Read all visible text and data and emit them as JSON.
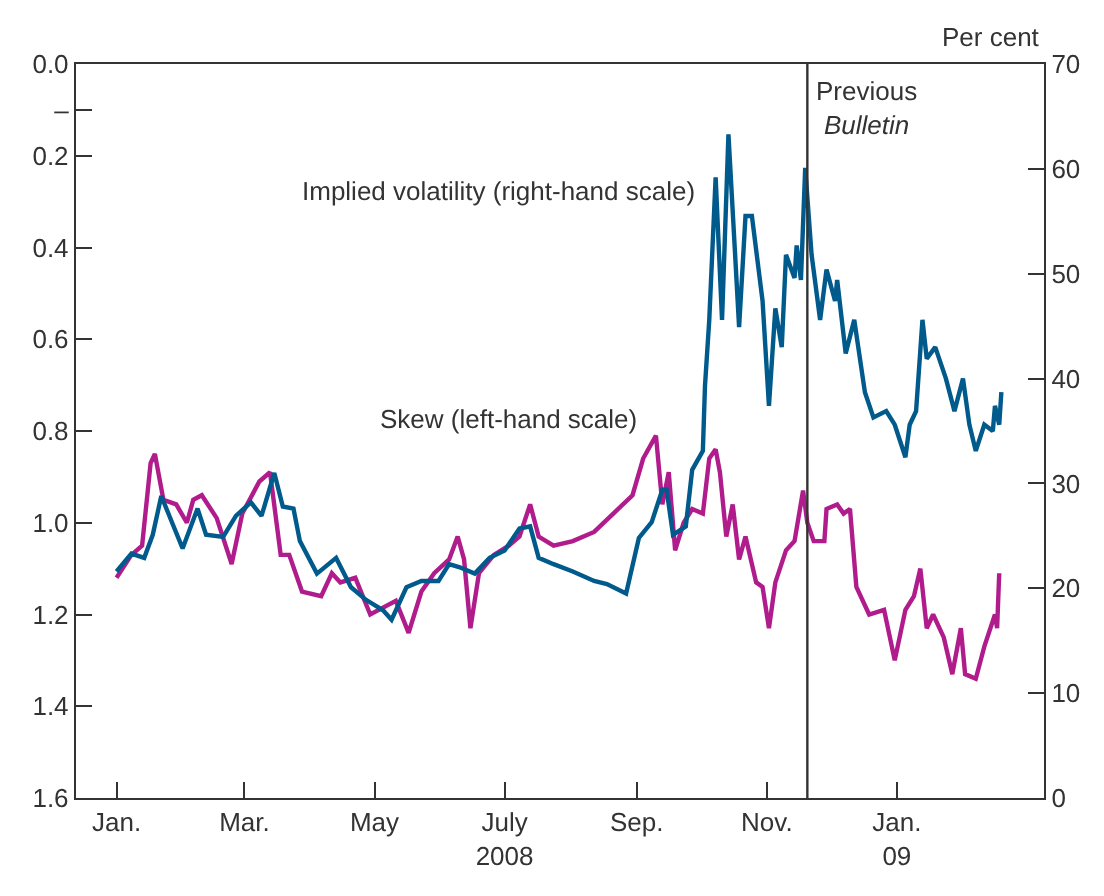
{
  "chart_data": {
    "type": "line",
    "xlim": [
      "2007-12-13",
      "2009-03-11"
    ],
    "xticks": [
      {
        "value": "2008-01-01",
        "label": "Jan."
      },
      {
        "value": "2008-03-01",
        "label": "Mar."
      },
      {
        "value": "2008-05-01",
        "label": "May"
      },
      {
        "value": "2008-07-01",
        "label": "July\n2008"
      },
      {
        "value": "2008-09-01",
        "label": "Sep."
      },
      {
        "value": "2008-11-01",
        "label": "Nov."
      },
      {
        "value": "2009-01-01",
        "label": "Jan.\n09"
      }
    ],
    "ylim": [
      1.6,
      0
    ],
    "yticks": [
      {
        "value": 0,
        "label": "0.0"
      },
      {
        "value": 0.1,
        "label": "–"
      },
      {
        "value": 0.2,
        "label": "0.2"
      },
      {
        "value": 0.4,
        "label": "0.4"
      },
      {
        "value": 0.6,
        "label": "0.6"
      },
      {
        "value": 0.8,
        "label": "0.8"
      },
      {
        "value": 1.0,
        "label": "1.0"
      },
      {
        "value": 1.2,
        "label": "1.2"
      },
      {
        "value": 1.4,
        "label": "1.4"
      },
      {
        "value": 1.6,
        "label": "1.6"
      }
    ],
    "y2lim": [
      0,
      70
    ],
    "y2ticks": [
      0,
      10,
      20,
      30,
      40,
      50,
      60,
      70
    ],
    "y2label": "Per cent",
    "legend": false,
    "line_style": "solid",
    "ref_lines": [
      {
        "axis": "x",
        "value": "2008-11-20",
        "label": "Previous\nBulletin",
        "color": "#333333"
      }
    ],
    "series": [
      {
        "name": "Skew (left-hand scale)",
        "color": "#b01c8c",
        "x": [
          "2008-01-01",
          "2008-01-08",
          "2008-01-13",
          "2008-01-17",
          "2008-01-19",
          "2008-01-23",
          "2008-01-29",
          "2008-02-03",
          "2008-02-06",
          "2008-02-10",
          "2008-02-17",
          "2008-02-24",
          "2008-02-29",
          "2008-03-08",
          "2008-03-13",
          "2008-03-18",
          "2008-03-22",
          "2008-03-28",
          "2008-04-06",
          "2008-04-11",
          "2008-04-15",
          "2008-04-22",
          "2008-04-29",
          "2008-05-11",
          "2008-05-17",
          "2008-05-23",
          "2008-05-29",
          "2008-06-05",
          "2008-06-09",
          "2008-06-12",
          "2008-06-15",
          "2008-06-19",
          "2008-06-26",
          "2008-07-03",
          "2008-07-08",
          "2008-07-13",
          "2008-07-17",
          "2008-07-24",
          "2008-08-02",
          "2008-08-12",
          "2008-08-21",
          "2008-08-30",
          "2008-09-04",
          "2008-09-10",
          "2008-09-13",
          "2008-09-16",
          "2008-09-19",
          "2008-09-23",
          "2008-09-27",
          "2008-10-02",
          "2008-10-05",
          "2008-10-08",
          "2008-10-10",
          "2008-10-13",
          "2008-10-16",
          "2008-10-19",
          "2008-10-22",
          "2008-10-27",
          "2008-10-30",
          "2008-11-02",
          "2008-11-05",
          "2008-11-10",
          "2008-11-14",
          "2008-11-18",
          "2008-11-20",
          "2008-11-23",
          "2008-11-28",
          "2008-11-29",
          "2008-12-04",
          "2008-12-07",
          "2008-12-10",
          "2008-12-13",
          "2008-12-19",
          "2008-12-26",
          "2008-12-31",
          "2009-01-05",
          "2009-01-09",
          "2009-01-12",
          "2009-01-15",
          "2009-01-18",
          "2009-01-23",
          "2009-01-27",
          "2009-01-31",
          "2009-02-02",
          "2009-02-07",
          "2009-02-11",
          "2009-02-16",
          "2009-02-17",
          "2009-02-18"
        ],
        "values": [
          1.12,
          1.07,
          1.05,
          0.87,
          0.85,
          0.95,
          0.96,
          1.0,
          0.95,
          0.94,
          0.99,
          1.09,
          0.98,
          0.91,
          0.89,
          1.07,
          1.07,
          1.15,
          1.16,
          1.11,
          1.13,
          1.12,
          1.2,
          1.17,
          1.24,
          1.15,
          1.11,
          1.08,
          1.03,
          1.08,
          1.23,
          1.11,
          1.07,
          1.05,
          1.03,
          0.96,
          1.03,
          1.05,
          1.04,
          1.02,
          0.98,
          0.94,
          0.86,
          0.81,
          0.96,
          0.89,
          1.06,
          1.0,
          0.97,
          0.98,
          0.86,
          0.84,
          0.89,
          1.03,
          0.96,
          1.08,
          1.03,
          1.13,
          1.14,
          1.23,
          1.13,
          1.06,
          1.04,
          0.93,
          1.0,
          1.04,
          1.04,
          0.97,
          0.96,
          0.98,
          0.97,
          1.14,
          1.2,
          1.19,
          1.3,
          1.19,
          1.16,
          1.1,
          1.23,
          1.2,
          1.25,
          1.33,
          1.23,
          1.33,
          1.34,
          1.27,
          1.2,
          1.23,
          1.11
        ]
      },
      {
        "name": "Implied volatility (right-hand scale)",
        "color": "#005a8c",
        "axis": "y2",
        "x": [
          "2008-01-01",
          "2008-01-08",
          "2008-01-14",
          "2008-01-18",
          "2008-01-22",
          "2008-01-27",
          "2008-02-01",
          "2008-02-08",
          "2008-02-12",
          "2008-02-20",
          "2008-02-26",
          "2008-03-04",
          "2008-03-09",
          "2008-03-15",
          "2008-03-19",
          "2008-03-24",
          "2008-03-27",
          "2008-04-04",
          "2008-04-13",
          "2008-04-20",
          "2008-04-27",
          "2008-05-05",
          "2008-05-09",
          "2008-05-16",
          "2008-05-23",
          "2008-05-31",
          "2008-06-05",
          "2008-06-10",
          "2008-06-17",
          "2008-06-24",
          "2008-07-01",
          "2008-07-08",
          "2008-07-13",
          "2008-07-17",
          "2008-07-24",
          "2008-08-02",
          "2008-08-12",
          "2008-08-18",
          "2008-08-27",
          "2008-09-02",
          "2008-09-08",
          "2008-09-13",
          "2008-09-15",
          "2008-09-18",
          "2008-09-24",
          "2008-09-27",
          "2008-10-02",
          "2008-10-03",
          "2008-10-05",
          "2008-10-08",
          "2008-10-11",
          "2008-10-14",
          "2008-10-17",
          "2008-10-19",
          "2008-10-22",
          "2008-10-25",
          "2008-10-30",
          "2008-11-02",
          "2008-11-05",
          "2008-11-08",
          "2008-11-10",
          "2008-11-14",
          "2008-11-15",
          "2008-11-17",
          "2008-11-19",
          "2008-11-22",
          "2008-11-26",
          "2008-11-29",
          "2008-12-03",
          "2008-12-04",
          "2008-12-08",
          "2008-12-12",
          "2008-12-17",
          "2008-12-21",
          "2008-12-27",
          "2008-12-31",
          "2009-01-05",
          "2009-01-07",
          "2009-01-10",
          "2009-01-13",
          "2009-01-15",
          "2009-01-19",
          "2009-01-24",
          "2009-01-28",
          "2009-02-01",
          "2009-02-04",
          "2009-02-07",
          "2009-02-11",
          "2009-02-15",
          "2009-02-16",
          "2009-02-18",
          "2009-02-19"
        ],
        "values": [
          21.6,
          23.3,
          22.9,
          25.1,
          28.8,
          26.3,
          23.8,
          27.6,
          25.1,
          24.9,
          26.9,
          28.2,
          26.9,
          31.0,
          27.8,
          27.6,
          24.5,
          21.4,
          22.9,
          20.1,
          18.9,
          17.9,
          17.0,
          20.1,
          20.7,
          20.7,
          22.3,
          22.0,
          21.4,
          22.9,
          23.6,
          25.7,
          25.9,
          22.9,
          22.3,
          21.6,
          20.7,
          20.4,
          19.5,
          24.8,
          26.3,
          29.4,
          29.4,
          25.1,
          25.9,
          31.3,
          33.1,
          39.3,
          45.6,
          59.2,
          45.6,
          63.3,
          52.3,
          44.9,
          55.5,
          55.5,
          47.4,
          37.4,
          46.7,
          43.0,
          51.8,
          49.6,
          52.7,
          49.4,
          60.1,
          51.8,
          45.6,
          50.4,
          47.4,
          49.4,
          42.4,
          45.6,
          38.7,
          36.3,
          36.9,
          35.6,
          32.5,
          35.6,
          36.9,
          45.6,
          41.9,
          43.0,
          40.0,
          36.9,
          40.0,
          35.6,
          33.1,
          35.6,
          35.0,
          37.4,
          35.6,
          38.7
        ]
      }
    ]
  }
}
